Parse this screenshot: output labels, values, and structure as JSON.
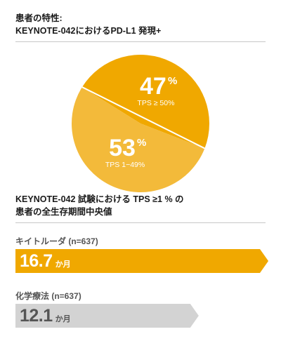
{
  "header": {
    "title_line1": "患者の特性:",
    "title_line2": "KEYNOTE-042におけるPD-L1 発現+"
  },
  "section2": {
    "title_line1": "KEYNOTE-042 試験における TPS ≥1 % の",
    "title_line2": "患者の全生存期間中央値"
  },
  "colors": {
    "accent_orange": "#F0A800",
    "light_orange": "#F3BA3A",
    "gray_bar": "#D3D3D3",
    "gray_text": "#555555",
    "divider": "#C8C8C8"
  },
  "chart_data": [
    {
      "type": "pie",
      "slices": [
        {
          "value": 47,
          "label": "TPS ≥ 50%",
          "display": "47",
          "unit": "%",
          "color": "#F0A800"
        },
        {
          "value": 53,
          "label": "TPS 1−49%",
          "display": "53",
          "unit": "%",
          "color": "#F3BA3A"
        }
      ]
    },
    {
      "type": "bar",
      "unit": "か月",
      "bars": [
        {
          "name": "キイトルーダ (n=637)",
          "value": 16.7,
          "display": "16.7",
          "color": "#F0A800",
          "text_color": "#ffffff"
        },
        {
          "name": "化学療法 (n=637)",
          "value": 12.1,
          "display": "12.1",
          "color": "#D3D3D3",
          "text_color": "#555555"
        }
      ]
    }
  ]
}
